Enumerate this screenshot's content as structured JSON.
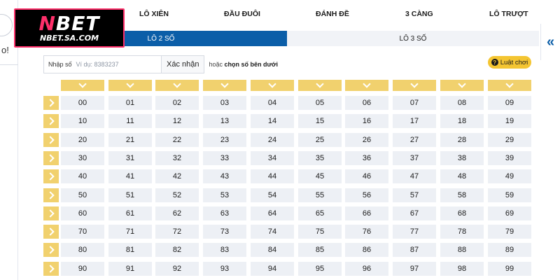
{
  "logo": {
    "main_n": "N",
    "main_rest": "BET",
    "sub": "NBET.SA.COM"
  },
  "left_strip": {
    "text": "o!"
  },
  "collapse": {
    "icon": "double-chevron-left-icon",
    "glyph": "«"
  },
  "top_menu": [
    "LÔ XIÊN",
    "ĐẦU ĐUÔI",
    "ĐÁNH ĐỀ",
    "3 CÀNG",
    "LÔ TRƯỢT"
  ],
  "subtabs": [
    {
      "label": "LÔ 2 SỐ",
      "active": true
    },
    {
      "label": "LÔ 3 SỐ",
      "active": false
    }
  ],
  "input": {
    "label": "Nhập số",
    "placeholder": "Ví dụ: 8383237"
  },
  "confirm_label": "Xác nhận",
  "hint_prefix": "hoặc",
  "hint_bold": "chọn số bên dưới",
  "rules": {
    "label": "Luật chơi",
    "icon": "question-circle-icon",
    "glyph": "?"
  },
  "colors": {
    "primary_blue": "#0b5ea8",
    "chevron_yellow": "#f1d16e",
    "rules_yellow": "#f4c531",
    "cell_bg": "#edf0f5",
    "logo_pink": "#ff2f6a"
  },
  "grid": {
    "rows": [
      [
        "00",
        "01",
        "02",
        "03",
        "04",
        "05",
        "06",
        "07",
        "08",
        "09"
      ],
      [
        "10",
        "11",
        "12",
        "13",
        "14",
        "15",
        "16",
        "17",
        "18",
        "19"
      ],
      [
        "20",
        "21",
        "22",
        "23",
        "24",
        "25",
        "26",
        "27",
        "28",
        "29"
      ],
      [
        "30",
        "31",
        "32",
        "33",
        "34",
        "35",
        "36",
        "37",
        "38",
        "39"
      ],
      [
        "40",
        "41",
        "42",
        "43",
        "44",
        "45",
        "46",
        "47",
        "48",
        "49"
      ],
      [
        "50",
        "51",
        "52",
        "53",
        "54",
        "55",
        "56",
        "57",
        "58",
        "59"
      ],
      [
        "60",
        "61",
        "62",
        "63",
        "64",
        "65",
        "66",
        "67",
        "68",
        "69"
      ],
      [
        "70",
        "71",
        "72",
        "73",
        "74",
        "75",
        "76",
        "77",
        "78",
        "79"
      ],
      [
        "80",
        "81",
        "82",
        "83",
        "84",
        "85",
        "86",
        "87",
        "88",
        "89"
      ],
      [
        "90",
        "91",
        "92",
        "93",
        "94",
        "95",
        "96",
        "97",
        "98",
        "99"
      ]
    ]
  }
}
